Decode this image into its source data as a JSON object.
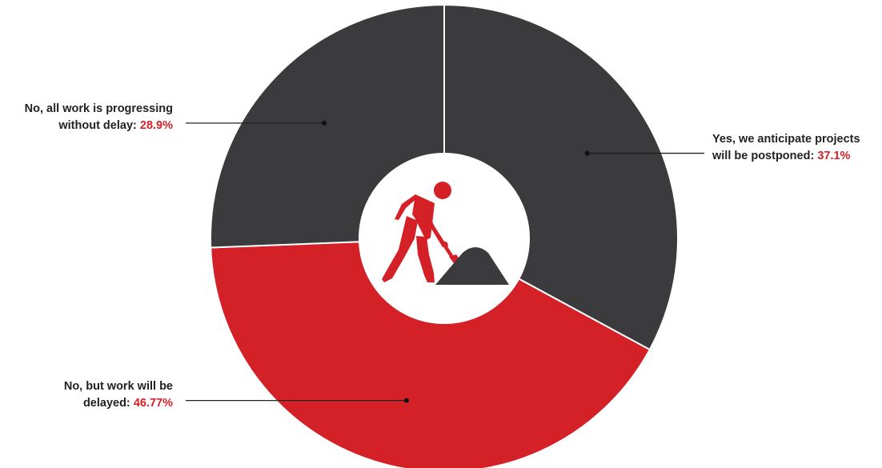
{
  "chart_data": {
    "type": "donut",
    "slices": [
      {
        "label_line1": "Yes, we anticipate projects",
        "label_line2": "will be postponed:",
        "value": 37.1,
        "value_text": "37.1%",
        "color": "#3b3a3d"
      },
      {
        "label_line1": "No, but work will be",
        "label_line2": "delayed:",
        "value": 46.77,
        "value_text": "46.77%",
        "color": "#d42027"
      },
      {
        "label_line1": "No, all work is progressing",
        "label_line2": "without delay:",
        "value": 28.9,
        "value_text": "28.9%",
        "color": "#3b3a3d"
      }
    ],
    "value_color": "#d42027",
    "center_icon": "worker-shoveling-icon",
    "legend": "callout-labels"
  }
}
